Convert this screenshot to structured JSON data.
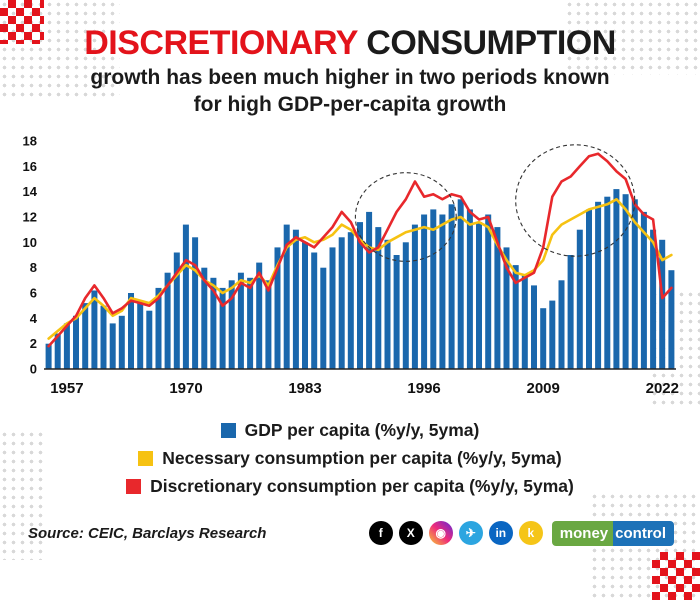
{
  "page": {
    "title_red": "DISCRETIONARY",
    "title_black": "CONSUMPTION",
    "subtitle_line1": "growth has been much higher in two periods known",
    "subtitle_line2": "for high GDP-per-capita growth",
    "source": "Source: CEIC, Barclays Research"
  },
  "legend": [
    {
      "label": "GDP per capita (%y/y, 5yma)",
      "color": "#1a67ac"
    },
    {
      "label": "Necessary consumption per capita (%y/y, 5yma)",
      "color": "#f6c212"
    },
    {
      "label": "Discretionary consumption per capita (%y/y, 5yma)",
      "color": "#e8282c"
    }
  ],
  "social": [
    {
      "name": "facebook",
      "glyph": "f",
      "color": "#000000"
    },
    {
      "name": "x-twitter",
      "glyph": "X",
      "color": "#000000"
    },
    {
      "name": "instagram",
      "glyph": "◉",
      "color": "#d6249f",
      "gradient": "linear-gradient(45deg,#f9ce34,#ee2a7b,#6228d7)"
    },
    {
      "name": "telegram",
      "glyph": "✈",
      "color": "#2ca5e0"
    },
    {
      "name": "linkedin",
      "glyph": "in",
      "color": "#0a66c2"
    },
    {
      "name": "koo",
      "glyph": "k",
      "color": "#f5c518"
    }
  ],
  "logo": {
    "part1": "money",
    "part2": "control"
  },
  "chart_data": {
    "type": "bar",
    "title": "",
    "ylim": [
      0,
      18
    ],
    "y_ticks": [
      0,
      2,
      4,
      6,
      8,
      10,
      12,
      14,
      16,
      18
    ],
    "x_label_ticks": [
      1957,
      1970,
      1983,
      1996,
      2009,
      2022
    ],
    "years": [
      1955,
      1956,
      1957,
      1958,
      1959,
      1960,
      1961,
      1962,
      1963,
      1964,
      1965,
      1966,
      1967,
      1968,
      1969,
      1970,
      1971,
      1972,
      1973,
      1974,
      1975,
      1976,
      1977,
      1978,
      1979,
      1980,
      1981,
      1982,
      1983,
      1984,
      1985,
      1986,
      1987,
      1988,
      1989,
      1990,
      1991,
      1992,
      1993,
      1994,
      1995,
      1996,
      1997,
      1998,
      1999,
      2000,
      2001,
      2002,
      2003,
      2004,
      2005,
      2006,
      2007,
      2008,
      2009,
      2010,
      2011,
      2012,
      2013,
      2014,
      2015,
      2016,
      2017,
      2018,
      2019,
      2020,
      2021,
      2022,
      2023
    ],
    "series": [
      {
        "name": "GDP per capita (%y/y, 5yma)",
        "type": "bar",
        "color": "#1a67ac",
        "values": [
          2.0,
          2.8,
          3.6,
          4.2,
          5.2,
          6.2,
          5.0,
          3.6,
          4.2,
          6.0,
          5.4,
          4.6,
          6.4,
          7.6,
          9.2,
          11.4,
          10.4,
          8.0,
          7.2,
          6.4,
          7.0,
          7.6,
          7.2,
          8.4,
          7.0,
          9.6,
          11.4,
          11.0,
          10.0,
          9.2,
          8.0,
          9.6,
          10.4,
          10.8,
          11.6,
          12.4,
          11.2,
          10.2,
          9.0,
          10.0,
          11.4,
          12.2,
          12.6,
          12.2,
          13.0,
          13.4,
          12.6,
          11.6,
          12.2,
          11.2,
          9.6,
          8.2,
          7.4,
          6.6,
          4.8,
          5.4,
          7.0,
          9.0,
          11.0,
          12.6,
          13.2,
          13.6,
          14.2,
          13.8,
          13.4,
          12.4,
          11.0,
          10.2,
          7.8
        ]
      },
      {
        "name": "Necessary consumption per capita (%y/y, 5yma)",
        "type": "line",
        "color": "#f6c212",
        "values": [
          2.4,
          3.0,
          3.6,
          4.0,
          4.8,
          5.6,
          5.0,
          4.2,
          4.6,
          5.6,
          5.4,
          5.2,
          5.8,
          6.6,
          7.4,
          8.2,
          7.8,
          7.0,
          6.6,
          6.0,
          6.4,
          7.0,
          6.8,
          7.4,
          6.6,
          8.2,
          9.6,
          10.2,
          10.4,
          10.0,
          10.2,
          10.6,
          11.4,
          11.0,
          10.2,
          9.6,
          9.4,
          10.0,
          10.4,
          10.8,
          11.0,
          11.2,
          11.0,
          11.4,
          11.8,
          12.0,
          11.4,
          11.6,
          11.2,
          9.8,
          8.6,
          7.6,
          7.4,
          7.8,
          8.6,
          10.6,
          11.4,
          11.8,
          12.2,
          12.6,
          12.8,
          13.0,
          13.4,
          12.6,
          11.6,
          10.8,
          10.0,
          8.6,
          9.0
        ]
      },
      {
        "name": "Discretionary consumption per capita (%y/y, 5yma)",
        "type": "line",
        "color": "#e8282c",
        "values": [
          1.8,
          2.6,
          3.4,
          4.2,
          5.6,
          6.6,
          5.6,
          4.4,
          4.8,
          5.4,
          5.2,
          5.0,
          5.6,
          6.6,
          7.6,
          8.6,
          8.2,
          7.0,
          6.2,
          5.0,
          5.6,
          6.8,
          6.4,
          7.6,
          6.2,
          8.0,
          9.8,
          10.4,
          10.0,
          9.6,
          10.4,
          11.2,
          12.4,
          11.6,
          10.0,
          9.2,
          9.6,
          11.0,
          12.4,
          13.4,
          14.8,
          13.6,
          13.8,
          13.4,
          13.8,
          13.6,
          12.4,
          11.8,
          12.0,
          10.0,
          8.0,
          6.8,
          7.2,
          7.6,
          9.6,
          13.6,
          14.8,
          15.2,
          16.0,
          16.8,
          17.0,
          16.4,
          15.6,
          15.0,
          13.0,
          12.2,
          11.8,
          5.6,
          6.4
        ]
      }
    ],
    "annotations": [
      {
        "type": "ellipse",
        "cx_year": 1994,
        "cy_value": 12.0,
        "rx_years": 5.5,
        "ry_value": 3.5
      },
      {
        "type": "ellipse",
        "cx_year": 2012.5,
        "cy_value": 13.3,
        "rx_years": 6.5,
        "ry_value": 4.4
      }
    ]
  }
}
